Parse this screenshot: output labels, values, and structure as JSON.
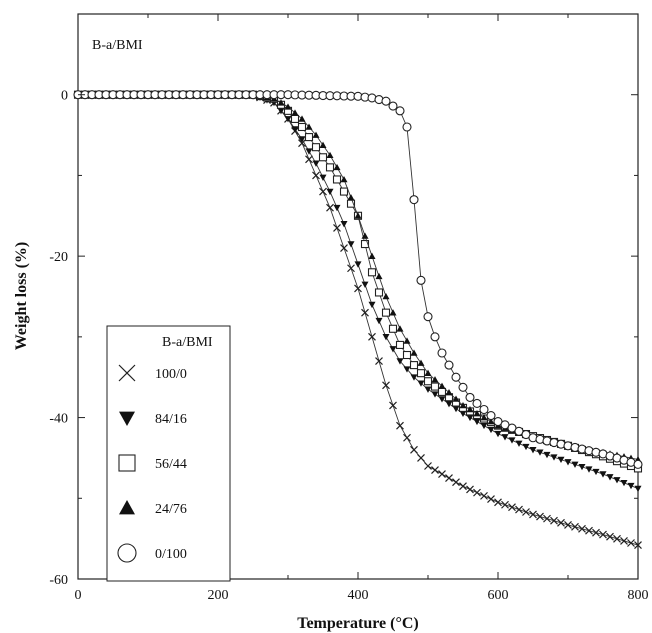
{
  "chart_data": {
    "type": "line",
    "panel_label": "B-a/BMI",
    "xlabel": "Temperature (°C)",
    "ylabel": "Weight loss (%)",
    "xlim": [
      0,
      800
    ],
    "ylim": [
      -60,
      10
    ],
    "xticks": [
      0,
      200,
      400,
      600,
      800
    ],
    "yticks": [
      0,
      -20,
      -40,
      -60
    ],
    "grid": false,
    "legend_title": "B-a/BMI",
    "legend_position": "bottom-left",
    "series": [
      {
        "name": "100/0",
        "marker": "x",
        "x": [
          0,
          100,
          200,
          250,
          280,
          300,
          320,
          340,
          360,
          380,
          400,
          420,
          440,
          460,
          480,
          500,
          550,
          600,
          650,
          700,
          750,
          800
        ],
        "y": [
          0,
          0,
          0,
          0,
          -1,
          -3,
          -6,
          -10,
          -14,
          -19,
          -24,
          -30,
          -36,
          -41,
          -44,
          -46,
          -48.5,
          -50.5,
          -52,
          -53.3,
          -54.5,
          -55.8
        ]
      },
      {
        "name": "84/16",
        "marker": "triangle-down",
        "x": [
          0,
          100,
          200,
          250,
          280,
          300,
          320,
          340,
          360,
          380,
          400,
          420,
          440,
          460,
          480,
          500,
          550,
          600,
          650,
          700,
          750,
          800
        ],
        "y": [
          0,
          0,
          0,
          0,
          -1,
          -3,
          -5.5,
          -8.5,
          -12,
          -16,
          -21,
          -26,
          -30,
          -33,
          -35,
          -36.5,
          -39.5,
          -42,
          -44,
          -45.5,
          -47,
          -48.8
        ]
      },
      {
        "name": "56/44",
        "marker": "square",
        "x": [
          0,
          100,
          200,
          250,
          280,
          300,
          320,
          340,
          360,
          380,
          400,
          420,
          440,
          460,
          480,
          500,
          550,
          600,
          650,
          700,
          750,
          800
        ],
        "y": [
          0,
          0,
          0,
          0,
          -0.5,
          -2,
          -4,
          -6.5,
          -9,
          -12,
          -15,
          -22,
          -27,
          -31,
          -33.5,
          -35.5,
          -38.8,
          -41,
          -42.3,
          -43.5,
          -44.8,
          -46.3
        ]
      },
      {
        "name": "24/76",
        "marker": "triangle-up",
        "x": [
          0,
          100,
          200,
          250,
          280,
          300,
          320,
          340,
          360,
          380,
          400,
          420,
          440,
          460,
          480,
          500,
          550,
          600,
          650,
          700,
          750,
          800
        ],
        "y": [
          0,
          0,
          0,
          0,
          -0.5,
          -1.5,
          -3,
          -5,
          -7.5,
          -10.5,
          -15,
          -20,
          -25,
          -29,
          -32,
          -34.5,
          -38.5,
          -41,
          -42.5,
          -43.5,
          -44.3,
          -45.2
        ]
      },
      {
        "name": "0/100",
        "marker": "circle",
        "x": [
          0,
          100,
          200,
          300,
          350,
          400,
          420,
          440,
          460,
          470,
          480,
          490,
          500,
          510,
          520,
          540,
          560,
          600,
          650,
          700,
          750,
          800
        ],
        "y": [
          0,
          0,
          0,
          0,
          -0.1,
          -0.2,
          -0.4,
          -0.8,
          -2,
          -4,
          -13,
          -23,
          -27.5,
          -30,
          -32,
          -35,
          -37.5,
          -40.5,
          -42.5,
          -43.5,
          -44.5,
          -45.8
        ]
      }
    ]
  }
}
